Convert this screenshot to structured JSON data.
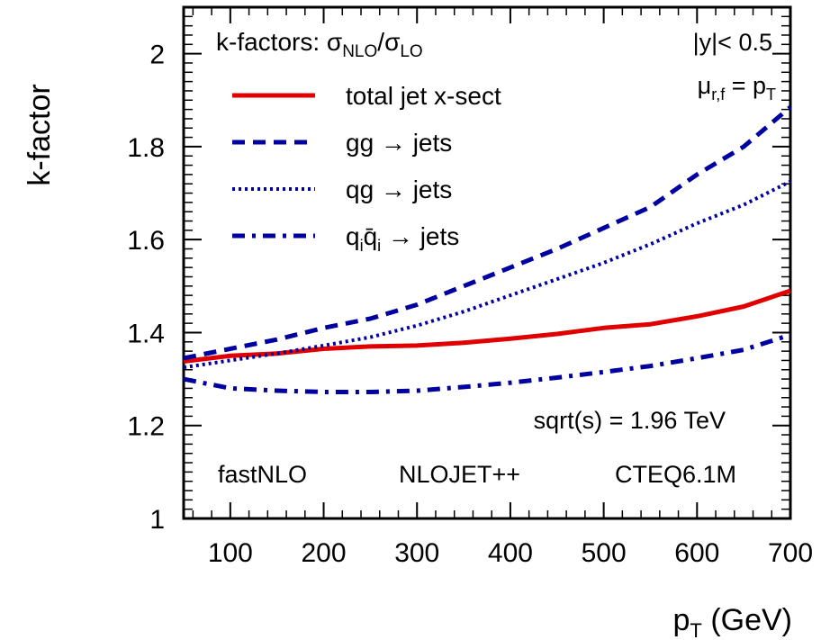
{
  "chart_data": {
    "type": "line",
    "title": "",
    "xlabel": {
      "main": "p",
      "sub": "T",
      "rest": " (GeV)"
    },
    "ylabel": "k-factor",
    "xlim": [
      50,
      700
    ],
    "ylim": [
      1.0,
      2.1
    ],
    "x_ticks": [
      100,
      200,
      300,
      400,
      500,
      600,
      700
    ],
    "y_ticks": [
      1,
      1.2,
      1.4,
      1.6,
      1.8,
      2
    ],
    "x_tick_labels": [
      "100",
      "200",
      "300",
      "400",
      "500",
      "600",
      "700"
    ],
    "y_tick_labels": [
      "1",
      "1.2",
      "1.4",
      "1.6",
      "1.8",
      "2"
    ],
    "grid": false,
    "legend_position": "top-left",
    "legend_header": {
      "prefix": "k-factors:  ",
      "num": "σ",
      "num_sub": "NLO",
      "slash": "/",
      "den": "σ",
      "den_sub": "LO"
    },
    "series": [
      {
        "name": "total jet x-sect",
        "color": "#e00000",
        "style": "solid",
        "x": [
          50,
          100,
          150,
          200,
          250,
          300,
          350,
          400,
          450,
          500,
          550,
          600,
          650,
          700
        ],
        "y": [
          1.338,
          1.35,
          1.355,
          1.365,
          1.37,
          1.372,
          1.378,
          1.387,
          1.397,
          1.41,
          1.418,
          1.435,
          1.456,
          1.49
        ]
      },
      {
        "name": "gg  → jets",
        "color": "#0000a0",
        "style": "dashed",
        "x": [
          50,
          100,
          150,
          200,
          250,
          300,
          350,
          400,
          450,
          500,
          550,
          600,
          650,
          700
        ],
        "y": [
          1.345,
          1.365,
          1.385,
          1.41,
          1.43,
          1.46,
          1.5,
          1.54,
          1.58,
          1.625,
          1.67,
          1.74,
          1.8,
          1.885
        ]
      },
      {
        "name": "qg  → jets",
        "color": "#0000a0",
        "style": "dotted",
        "x": [
          50,
          100,
          150,
          200,
          250,
          300,
          350,
          400,
          450,
          500,
          550,
          600,
          650,
          700
        ],
        "y": [
          1.325,
          1.34,
          1.355,
          1.372,
          1.39,
          1.415,
          1.445,
          1.48,
          1.515,
          1.55,
          1.59,
          1.635,
          1.675,
          1.725
        ]
      },
      {
        "name": "qiq̄i → jets",
        "display": {
          "q": "q",
          "i1": "i",
          "qbar": "q̄",
          "i2": "i",
          "arrow": "  → jets"
        },
        "color": "#0000a0",
        "style": "dashdot",
        "x": [
          50,
          100,
          150,
          200,
          250,
          300,
          350,
          400,
          450,
          500,
          550,
          600,
          650,
          700
        ],
        "y": [
          1.3,
          1.28,
          1.275,
          1.272,
          1.272,
          1.275,
          1.283,
          1.292,
          1.303,
          1.315,
          1.328,
          1.345,
          1.363,
          1.395
        ]
      }
    ],
    "annotations": {
      "rapidity": "|y|< 0.5",
      "scale": {
        "mu": "μ",
        "mu_sub": "r,f",
        "eq": " = p",
        "pt_sub": "T"
      },
      "sqrt_s": "sqrt(s) = 1.96 TeV",
      "tools": [
        "fastNLO",
        "NLOJET++",
        "CTEQ6.1M"
      ]
    }
  }
}
